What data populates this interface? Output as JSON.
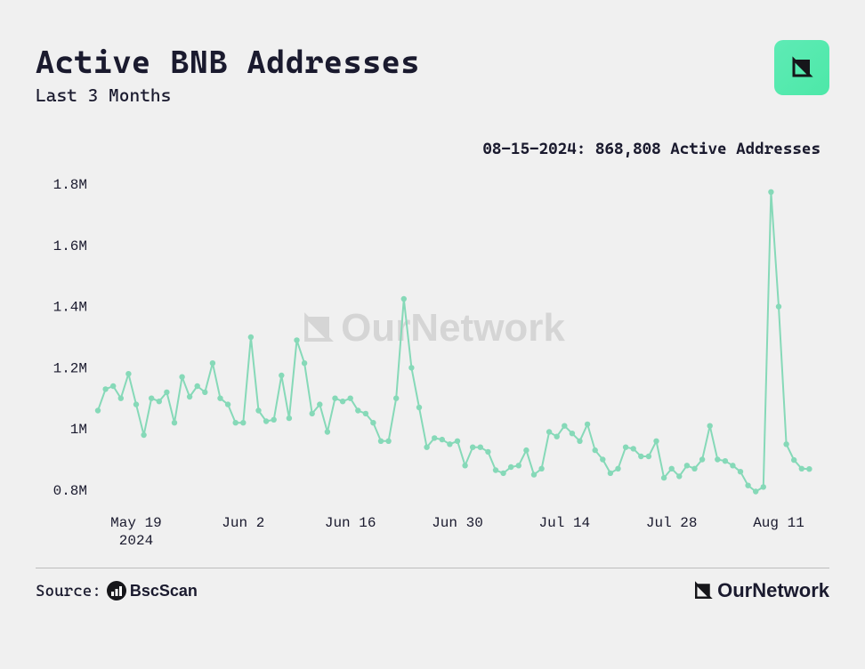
{
  "title": "Active BNB Addresses",
  "subtitle": "Last 3 Months",
  "annotation": "08-15-2024: 868,808 Active Addresses",
  "watermark": "OurNetwork",
  "source_label": "Source:",
  "source_name": "BscScan",
  "footer_brand": "OurNetwork",
  "chart": {
    "type": "line",
    "line_color": "#86d9b8",
    "marker_color": "#86d9b8",
    "marker_size": 3.2,
    "line_width": 2,
    "background_color": "#f0f0f0",
    "ylim": [
      750000,
      1850000
    ],
    "xlim": [
      0,
      94
    ],
    "y_ticks": [
      {
        "v": 800000,
        "label": "0.8M"
      },
      {
        "v": 1000000,
        "label": "1M"
      },
      {
        "v": 1200000,
        "label": "1.2M"
      },
      {
        "v": 1400000,
        "label": "1.4M"
      },
      {
        "v": 1600000,
        "label": "1.6M"
      },
      {
        "v": 1800000,
        "label": "1.8M"
      }
    ],
    "x_ticks": [
      {
        "i": 5,
        "label": "May 19"
      },
      {
        "i": 19,
        "label": "Jun 2"
      },
      {
        "i": 33,
        "label": "Jun 16"
      },
      {
        "i": 47,
        "label": "Jun 30"
      },
      {
        "i": 61,
        "label": "Jul 14"
      },
      {
        "i": 75,
        "label": "Jul 28"
      },
      {
        "i": 89,
        "label": "Aug 11"
      }
    ],
    "x_year_label": "2024",
    "x_year_at": 5,
    "values": [
      1060000,
      1130000,
      1140000,
      1100000,
      1180000,
      1080000,
      980000,
      1100000,
      1090000,
      1120000,
      1020000,
      1170000,
      1105000,
      1140000,
      1120000,
      1215000,
      1100000,
      1080000,
      1020000,
      1020000,
      1300000,
      1060000,
      1025000,
      1030000,
      1175000,
      1035000,
      1290000,
      1215000,
      1050000,
      1080000,
      990000,
      1100000,
      1090000,
      1100000,
      1060000,
      1050000,
      1020000,
      960000,
      960000,
      1100000,
      1425000,
      1200000,
      1070000,
      940000,
      970000,
      965000,
      950000,
      960000,
      880000,
      940000,
      940000,
      925000,
      865000,
      855000,
      875000,
      880000,
      930000,
      850000,
      870000,
      990000,
      975000,
      1010000,
      985000,
      960000,
      1015000,
      930000,
      900000,
      855000,
      870000,
      940000,
      935000,
      910000,
      910000,
      960000,
      840000,
      870000,
      845000,
      880000,
      870000,
      900000,
      1010000,
      900000,
      895000,
      880000,
      860000,
      815000,
      795000,
      810000,
      1775000,
      1400000,
      950000,
      898000,
      870000,
      868808
    ]
  },
  "colors": {
    "text": "#1a1a2e",
    "badge_bg_start": "#5eebb5",
    "badge_bg_end": "#4de8a8",
    "divider": "#bdbdbd",
    "watermark": "#bfbfbf"
  },
  "fonts": {
    "title_size": 36,
    "subtitle_size": 20,
    "annotation_size": 18,
    "tick_size": 16,
    "watermark_size": 44
  }
}
